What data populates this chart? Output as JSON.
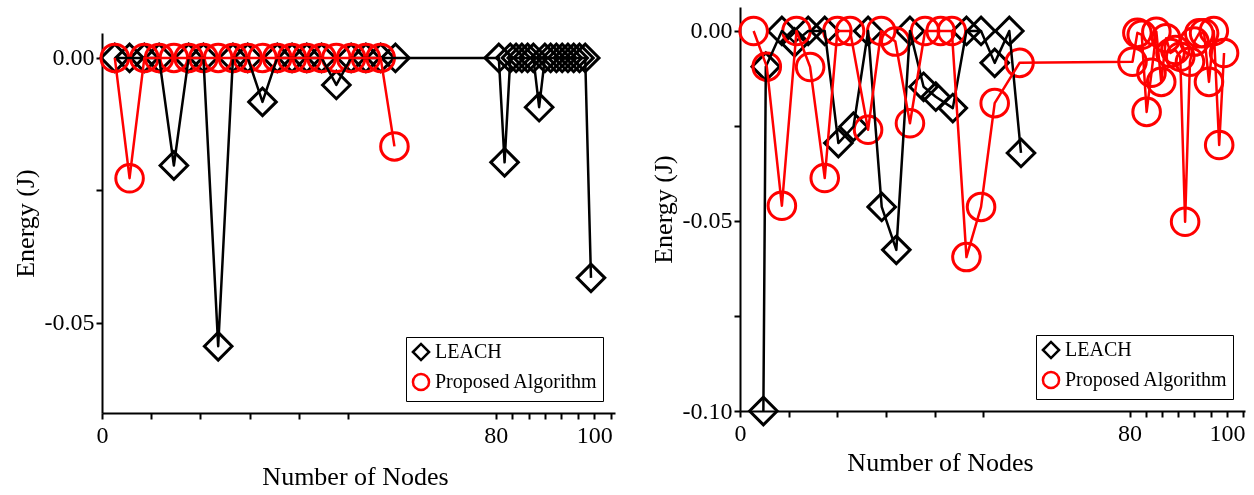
{
  "chart_data": [
    {
      "type": "line",
      "ylabel": "Energy (J)",
      "xlabel": "Number of Nodes",
      "xlim": [
        0,
        104.2
      ],
      "xticks": [
        0,
        {
          "value": 10,
          "label": null
        },
        {
          "value": 20,
          "label": null
        },
        {
          "value": 30,
          "label": null
        },
        {
          "value": 40,
          "label": null
        },
        {
          "value": 50,
          "label": null
        },
        80,
        {
          "value": 83.33,
          "label": null
        },
        {
          "value": 86.67,
          "label": null
        },
        {
          "value": 90,
          "label": null
        },
        {
          "value": 93.33,
          "label": null
        },
        {
          "value": 96.67,
          "label": null
        },
        100,
        {
          "value": 103.33,
          "label": null
        }
      ],
      "ylim": [
        -0.067,
        0.0047
      ],
      "yticks": [
        {
          "value": 0,
          "label": "0.00"
        },
        {
          "value": -0.025,
          "label": null
        },
        {
          "value": -0.05,
          "label": "-0.05"
        }
      ],
      "legend": "bottom right",
      "series": [
        {
          "name": "LEACH",
          "color": "#000000",
          "marker": "diamond",
          "x": [
            2.6,
            5.6,
            8.6,
            11.6,
            14.6,
            17.6,
            20.6,
            23.6,
            26.6,
            29.6,
            32.6,
            35.6,
            38.6,
            41.6,
            44.6,
            47.6,
            50.6,
            53.6,
            56.6,
            59.6,
            80.6,
            81.77,
            82.94,
            84.11,
            85.28,
            86.45,
            87.62,
            88.79,
            89.96,
            91.13,
            92.3,
            93.47,
            94.64,
            95.81,
            96.98,
            98.15,
            99.32
          ],
          "values": [
            0,
            0,
            0,
            0,
            -0.0203,
            0,
            0,
            -0.0544,
            0,
            0,
            -0.0083,
            0,
            0,
            0,
            0,
            -0.0051,
            0,
            0,
            0,
            0,
            0,
            -0.0197,
            0,
            0,
            0,
            0,
            0,
            -0.0093,
            0,
            0,
            0,
            0,
            0,
            0,
            0,
            0,
            -0.0415
          ]
        },
        {
          "name": "Proposed Algorithm",
          "color": "#ff0000",
          "marker": "circle",
          "x": [
            2.6,
            5.6,
            8.6,
            11.6,
            14.6,
            17.6,
            20.6,
            23.6,
            26.6,
            29.6,
            32.6,
            35.6,
            38.6,
            41.6,
            44.6,
            47.6,
            50.6,
            53.6,
            56.6,
            59.4
          ],
          "values": [
            0,
            -0.0227,
            0,
            0,
            0,
            0,
            0,
            0,
            0,
            0,
            0,
            0,
            0,
            0,
            0,
            0,
            0,
            0,
            0,
            -0.0167
          ]
        }
      ]
    },
    {
      "type": "line",
      "ylabel": "Energy (J)",
      "xlabel": "Number of Nodes",
      "xlim": [
        0,
        103.7
      ],
      "xticks": [
        0,
        {
          "value": 10,
          "label": null
        },
        {
          "value": 20,
          "label": null
        },
        {
          "value": 30,
          "label": null
        },
        {
          "value": 40,
          "label": null
        },
        {
          "value": 50,
          "label": null
        },
        80,
        {
          "value": 83.33,
          "label": null
        },
        {
          "value": 86.67,
          "label": null
        },
        {
          "value": 90,
          "label": null
        },
        {
          "value": 93.33,
          "label": null
        },
        {
          "value": 96.67,
          "label": null
        },
        100,
        {
          "value": 103.33,
          "label": null
        }
      ],
      "ylim": [
        -0.1,
        0.0063
      ],
      "yticks": [
        {
          "value": 0,
          "label": "0.00"
        },
        {
          "value": -0.025,
          "label": null
        },
        {
          "value": -0.05,
          "label": "-0.05"
        },
        {
          "value": -0.075,
          "label": null
        },
        {
          "value": -0.1,
          "label": "-0.10"
        }
      ],
      "legend": "bottom right",
      "series": [
        {
          "name": "LEACH",
          "color": "#000000",
          "marker": "diamond",
          "x": [
            4.8,
            5.3,
            8.6,
            11.2,
            14,
            17.4,
            20.2,
            23.3,
            26.3,
            29.1,
            32.1,
            34.9,
            37.7,
            40.2,
            43.7,
            46.5,
            49.5,
            52.3,
            55.3,
            57.7
          ],
          "values": [
            -0.1,
            -0.0094,
            0,
            -0.003,
            0,
            0,
            -0.0295,
            -0.0252,
            0,
            -0.0463,
            -0.0576,
            0,
            -0.0147,
            -0.0173,
            -0.0203,
            0,
            0,
            -0.0084,
            0,
            -0.0321
          ]
        },
        {
          "name": "Proposed Algorithm",
          "color": "#ff0000",
          "marker": "circle",
          "x": [
            2.8,
            5.5,
            8.6,
            11.6,
            14.4,
            17.4,
            20,
            22.6,
            26.3,
            29,
            31.9,
            34.9,
            38,
            41.2,
            43.5,
            46.5,
            49.5,
            52.3,
            57.4,
            80.6,
            81.6,
            82.5,
            83.5,
            84.5,
            85.5,
            86.5,
            87.5,
            88.4,
            89.4,
            90.4,
            91.4,
            92.4,
            93.3,
            94.3,
            95.3,
            96.3,
            97.3,
            98.4,
            99.4
          ],
          "values": [
            0,
            -0.0094,
            -0.046,
            0,
            -0.0095,
            -0.0387,
            0,
            0,
            -0.026,
            0,
            -0.0028,
            -0.0243,
            0,
            0,
            0,
            -0.0595,
            -0.0463,
            -0.019,
            -0.0084,
            -0.0081,
            -0.0005,
            -0.001,
            -0.0213,
            -0.011,
            -0.0002,
            -0.0134,
            -0.0019,
            -0.0058,
            -0.005,
            -0.0068,
            -0.0502,
            -0.0081,
            -0.0028,
            -0.0006,
            -0.0006,
            -0.0134,
            0,
            -0.03,
            -0.0058
          ]
        }
      ]
    }
  ]
}
